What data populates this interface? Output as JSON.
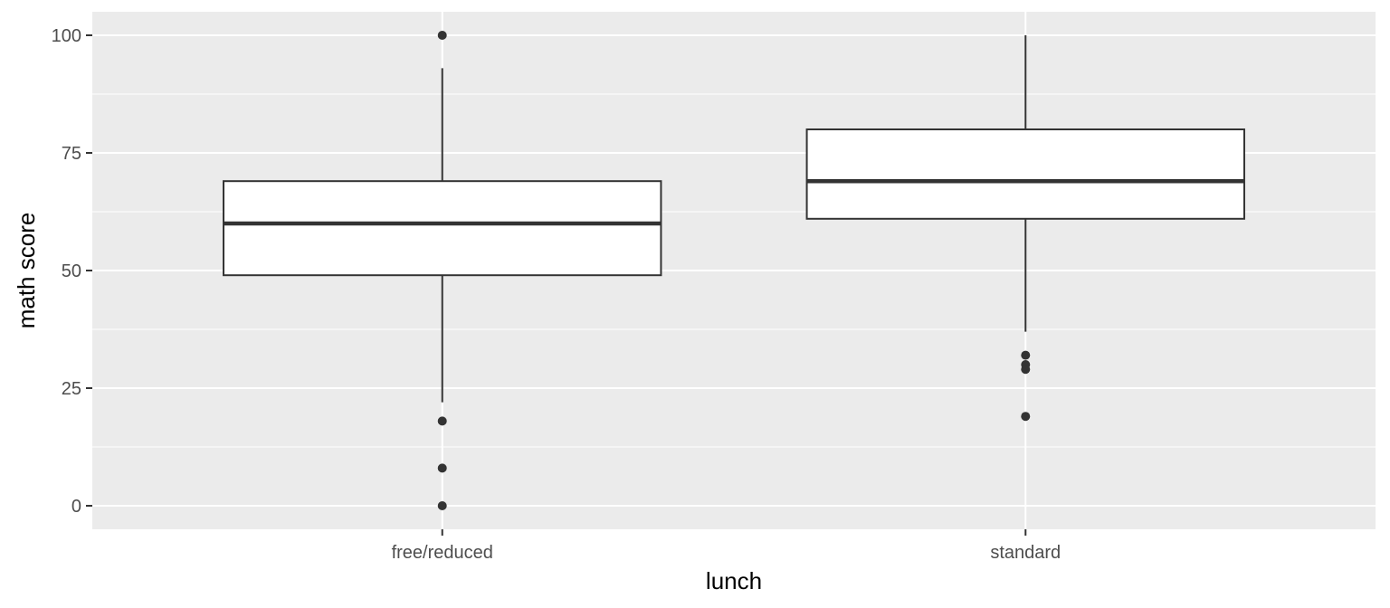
{
  "chart_data": {
    "type": "boxplot",
    "xlabel": "lunch",
    "ylabel": "math score",
    "categories": [
      "free/reduced",
      "standard"
    ],
    "ylim": [
      -5,
      105
    ],
    "yticks": [
      0,
      25,
      50,
      75,
      100
    ],
    "ytick_labels": [
      "0",
      "25",
      "50",
      "75",
      "100"
    ],
    "grid": true,
    "boxes": [
      {
        "category": "free/reduced",
        "min": 22,
        "q1": 49,
        "median": 60,
        "q3": 69,
        "max": 93,
        "outliers": [
          100,
          18,
          8,
          0
        ]
      },
      {
        "category": "standard",
        "min": 37,
        "q1": 61,
        "median": 69,
        "q3": 80,
        "max": 100,
        "outliers": [
          32,
          30,
          29,
          19
        ]
      }
    ],
    "colors": {
      "panel": "#ebebeb",
      "grid": "#ffffff",
      "box_fill": "#ffffff",
      "line": "#333333"
    }
  }
}
